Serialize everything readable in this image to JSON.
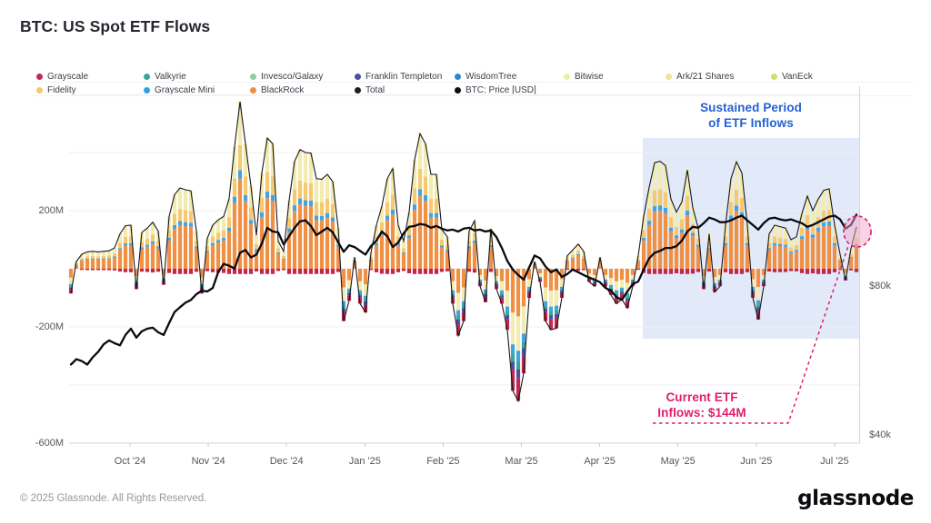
{
  "header": {
    "title": "BTC: US Spot ETF Flows"
  },
  "legend": {
    "items": [
      {
        "label": "Grayscale",
        "color": "#c22a52",
        "row": 0,
        "col": 0
      },
      {
        "label": "Valkyrie",
        "color": "#35a795",
        "row": 0,
        "col": 1
      },
      {
        "label": "Invesco/Galaxy",
        "color": "#93cf9e",
        "row": 0,
        "col": 2
      },
      {
        "label": "Franklin Templeton",
        "color": "#4d4fa5",
        "row": 0,
        "col": 3
      },
      {
        "label": "WisdomTree",
        "color": "#2d87c8",
        "row": 0,
        "col": 4
      },
      {
        "label": "Bitwise",
        "color": "#e9f0a2",
        "row": 0,
        "col": 5
      },
      {
        "label": "Ark/21 Shares",
        "color": "#f3e294",
        "row": 0,
        "col": 6
      },
      {
        "label": "VanEck",
        "color": "#d5da76",
        "row": 0,
        "col": 7
      },
      {
        "label": "Fidelity",
        "color": "#f4c76d",
        "row": 1,
        "col": 0
      },
      {
        "label": "Grayscale Mini",
        "color": "#2f9fe6",
        "row": 1,
        "col": 1
      },
      {
        "label": "BlackRock",
        "color": "#ef8e44",
        "row": 1,
        "col": 2
      },
      {
        "label": "Total",
        "color": "#1d1d26",
        "row": 1,
        "col": 3
      },
      {
        "label": "BTC: Price [USD]",
        "color": "#0c0c12",
        "row": 1,
        "col": 4
      }
    ]
  },
  "chart_data": {
    "type": "combo_stacked_bar_line",
    "title": "BTC: US Spot ETF Flows",
    "x_range": [
      "2024-09-08",
      "2025-07-11"
    ],
    "points": 145,
    "x_tick_labels": [
      "Oct '24",
      "Nov '24",
      "Dec '24",
      "Jan '25",
      "Feb '25",
      "Mar '25",
      "Apr '25",
      "May '25",
      "Jun '25",
      "Jul '25"
    ],
    "y_left_ticks": [
      {
        "label": "200M",
        "value": 200
      },
      {
        "label": "-200M",
        "value": -200
      },
      {
        "label": "-600M",
        "value": -600
      }
    ],
    "y_right_ticks": [
      {
        "label": "$80k",
        "value_k": 80
      },
      {
        "label": "$40k",
        "value_k": 40
      }
    ],
    "y_right_scale": "log2",
    "grid_values_m": [
      600,
      400,
      200,
      0,
      -200,
      -400,
      -600
    ],
    "flows_total_musd": [
      -85,
      25,
      50,
      58,
      60,
      58,
      60,
      62,
      72,
      120,
      148,
      150,
      -70,
      125,
      140,
      160,
      130,
      -55,
      180,
      255,
      278,
      272,
      268,
      130,
      -85,
      105,
      150,
      168,
      180,
      240,
      420,
      575,
      430,
      285,
      115,
      330,
      450,
      430,
      95,
      60,
      235,
      370,
      410,
      400,
      398,
      310,
      308,
      325,
      300,
      140,
      -180,
      -110,
      40,
      -120,
      -150,
      55,
      150,
      215,
      310,
      345,
      150,
      95,
      195,
      375,
      465,
      430,
      325,
      325,
      135,
      110,
      -120,
      -230,
      -180,
      130,
      165,
      -60,
      -115,
      138,
      -70,
      -120,
      -210,
      -420,
      -455,
      -360,
      -100,
      25,
      -45,
      -180,
      -210,
      -205,
      -100,
      45,
      65,
      85,
      60,
      -45,
      -60,
      40,
      -60,
      -90,
      -120,
      -105,
      -135,
      -60,
      45,
      180,
      280,
      365,
      370,
      355,
      240,
      195,
      230,
      340,
      210,
      140,
      -70,
      120,
      -80,
      -60,
      150,
      310,
      368,
      330,
      150,
      -100,
      -175,
      -60,
      120,
      150,
      145,
      140,
      100,
      110,
      190,
      250,
      200,
      240,
      270,
      275,
      150,
      50,
      -40,
      70,
      144
    ],
    "btc_price_kusd": [
      55.5,
      56.9,
      56.4,
      55.5,
      57.4,
      58.9,
      61.0,
      62.1,
      61.3,
      60.7,
      63.7,
      65.6,
      62.9,
      64.8,
      65.6,
      65.9,
      64.5,
      63.7,
      67.3,
      70.9,
      72.5,
      74.0,
      75.0,
      77.0,
      78.3,
      78.0,
      79.3,
      85.3,
      88.7,
      87.9,
      86.8,
      93.4,
      94.6,
      91.4,
      92.6,
      97.5,
      104.9,
      103.1,
      102.7,
      97.1,
      100.9,
      104.9,
      108.1,
      108.6,
      105.8,
      101.4,
      103.1,
      104.9,
      102.7,
      98.0,
      93.8,
      96.7,
      95.9,
      94.2,
      92.6,
      96.3,
      98.8,
      103.1,
      100.9,
      95.9,
      98.0,
      102.3,
      105.4,
      105.8,
      106.8,
      106.3,
      104.9,
      105.8,
      104.5,
      103.6,
      104.0,
      103.1,
      104.5,
      104.9,
      103.6,
      104.0,
      103.1,
      103.6,
      100.5,
      95.5,
      89.9,
      86.4,
      84.2,
      82.4,
      87.2,
      92.2,
      91.0,
      87.6,
      85.3,
      86.4,
      83.5,
      84.6,
      86.4,
      85.3,
      84.2,
      83.2,
      82.4,
      81.4,
      79.3,
      78.3,
      76.0,
      75.0,
      78.0,
      80.7,
      81.7,
      86.4,
      91.0,
      93.4,
      94.2,
      95.5,
      95.5,
      96.3,
      98.8,
      103.1,
      105.4,
      104.9,
      107.2,
      110.0,
      109.1,
      107.7,
      107.7,
      108.6,
      110.0,
      111.0,
      108.6,
      106.3,
      104.0,
      107.2,
      109.5,
      110.0,
      109.1,
      108.6,
      109.1,
      108.1,
      107.2,
      105.4,
      106.3,
      107.7,
      109.1,
      110.5,
      111.0,
      109.1,
      104.5,
      106.3,
      111.5
    ],
    "etf_mix_positive": {
      "BlackRock": 0.54,
      "Grayscale Mini": 0.05,
      "Fidelity": 0.15,
      "Bitwise/Ark/VanEck": 0.26
    },
    "etf_mix_negative": {
      "BlackRock": 0.36,
      "Bitwise/Ark/VanEck": 0.26,
      "Grayscale Mini": 0.08,
      "Valkyrie": 0.06,
      "Franklin Templeton": 0.07,
      "Grayscale": 0.17
    },
    "segment_colors": {
      "orange": "#f09045",
      "amber": "#f6c96e",
      "pale": "#f3ecb0",
      "blue": "#41a3e2",
      "red": "#c2274d",
      "teal": "#35a795",
      "navy": "#4d4fa5"
    },
    "highlight_region_label": "Sustained Period of ETF Inflows",
    "annotations": {
      "sustained": {
        "line1": "Sustained Period",
        "line2": "of ETF Inflows",
        "color": "#2560d4"
      },
      "current": {
        "line1": "Current ETF",
        "line2": "Inflows: $144M",
        "color": "#e11d6a",
        "value_musd": 144
      }
    },
    "total_line_color": "#17171f",
    "price_line_color": "#0a0a10"
  },
  "footer": {
    "copyright": "© 2025 Glassnode. All Rights Reserved.",
    "brand": "glassnode"
  }
}
